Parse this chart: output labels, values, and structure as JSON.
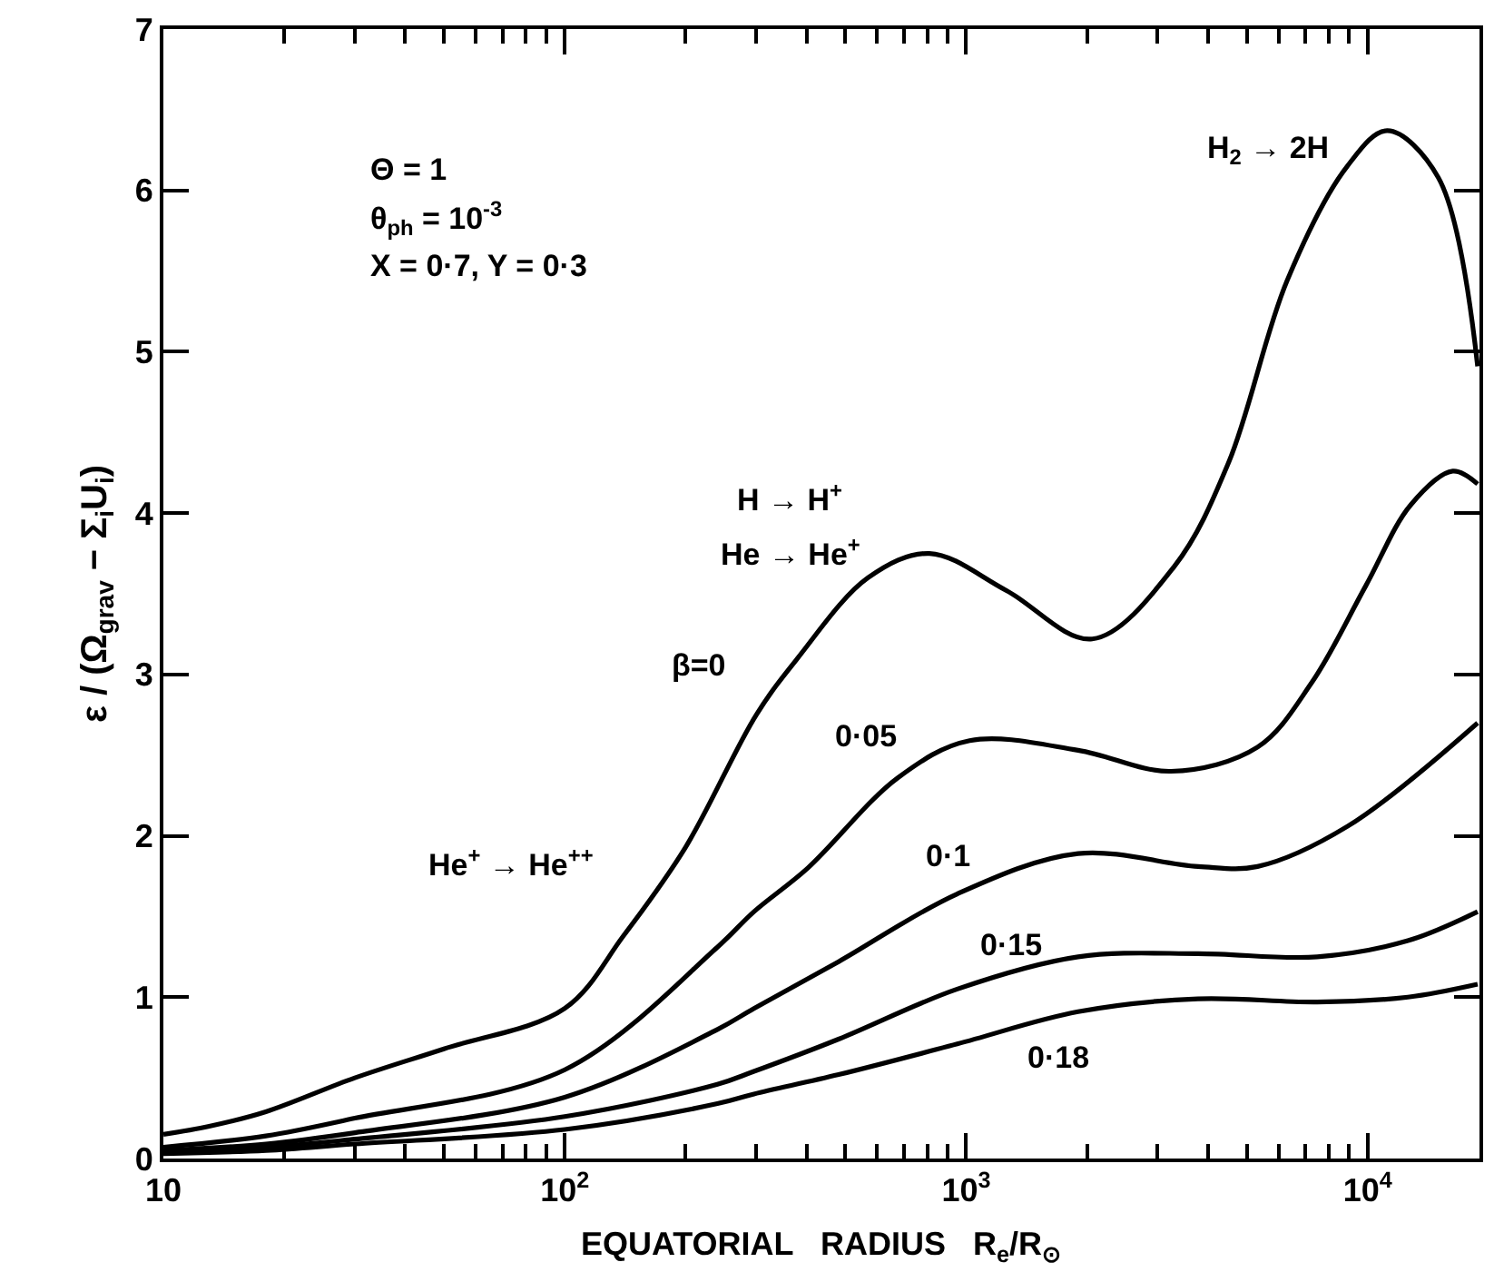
{
  "chart_data": {
    "type": "line",
    "xlabel": "EQUATORIAL   RADIUS   R$_{e}$/R$_{⊙}$",
    "ylabel": "ε / (Ω$_{grav}$ − Σ$_{i}$U$_{i}$)",
    "log": "x",
    "grid": false,
    "legend": false,
    "marker": "none",
    "line_style": "solid",
    "xlim": [
      10,
      19000
    ],
    "ylim": [
      0,
      7
    ],
    "xticks": [
      {
        "value": 10,
        "label": "10"
      },
      {
        "value": 20,
        "label": null
      },
      {
        "value": 30,
        "label": null
      },
      {
        "value": 40,
        "label": null
      },
      {
        "value": 50,
        "label": null
      },
      {
        "value": 60,
        "label": null
      },
      {
        "value": 70,
        "label": null
      },
      {
        "value": 80,
        "label": null
      },
      {
        "value": 90,
        "label": null
      },
      {
        "value": 100,
        "label": "10$^{2}$"
      },
      {
        "value": 200,
        "label": null
      },
      {
        "value": 300,
        "label": null
      },
      {
        "value": 400,
        "label": null
      },
      {
        "value": 500,
        "label": null
      },
      {
        "value": 600,
        "label": null
      },
      {
        "value": 700,
        "label": null
      },
      {
        "value": 800,
        "label": null
      },
      {
        "value": 900,
        "label": null
      },
      {
        "value": 1000,
        "label": "10$^{3}$"
      },
      {
        "value": 2000,
        "label": null
      },
      {
        "value": 3000,
        "label": null
      },
      {
        "value": 4000,
        "label": null
      },
      {
        "value": 5000,
        "label": null
      },
      {
        "value": 6000,
        "label": null
      },
      {
        "value": 7000,
        "label": null
      },
      {
        "value": 8000,
        "label": null
      },
      {
        "value": 9000,
        "label": null
      },
      {
        "value": 10000,
        "label": "10$^{4}$"
      }
    ],
    "yticks": [
      0,
      1,
      2,
      3,
      4,
      5,
      6,
      7
    ],
    "series": [
      {
        "name": "β=0",
        "color": "#000000",
        "x": [
          10,
          13,
          18,
          30,
          50,
          100,
          140,
          200,
          300,
          380,
          570,
          810,
          1260,
          2060,
          3300,
          4500,
          6300,
          8900,
          11200,
          15000,
          18800
        ],
        "values": [
          0.15,
          0.2,
          0.29,
          0.5,
          0.68,
          0.93,
          1.38,
          1.93,
          2.75,
          3.1,
          3.6,
          3.75,
          3.52,
          3.22,
          3.67,
          4.31,
          5.44,
          6.15,
          6.37,
          6.08,
          4.91
        ]
      },
      {
        "name": "0·05",
        "color": "#000000",
        "x": [
          10,
          18,
          30,
          100,
          240,
          296,
          403,
          676,
          1020,
          1900,
          3240,
          5320,
          7260,
          9900,
          12800,
          16300,
          18800
        ],
        "values": [
          0.07,
          0.14,
          0.25,
          0.55,
          1.31,
          1.53,
          1.8,
          2.36,
          2.59,
          2.53,
          2.4,
          2.55,
          2.95,
          3.55,
          4.05,
          4.26,
          4.18
        ]
      },
      {
        "name": "0·1",
        "color": "#000000",
        "x": [
          10,
          18,
          30,
          100,
          240,
          296,
          481,
          950,
          1900,
          3780,
          5320,
          8930,
          18800
        ],
        "values": [
          0.05,
          0.09,
          0.16,
          0.38,
          0.8,
          0.93,
          1.22,
          1.64,
          1.89,
          1.81,
          1.81,
          2.06,
          2.7
        ]
      },
      {
        "name": "0·15",
        "color": "#000000",
        "x": [
          10,
          18,
          30,
          100,
          240,
          296,
          481,
          950,
          1900,
          3780,
          7490,
          12600,
          18800
        ],
        "values": [
          0.04,
          0.07,
          0.12,
          0.26,
          0.46,
          0.54,
          0.74,
          1.05,
          1.25,
          1.27,
          1.25,
          1.35,
          1.53
        ]
      },
      {
        "name": "0·18",
        "color": "#000000",
        "x": [
          10,
          18,
          30,
          100,
          240,
          296,
          481,
          950,
          1900,
          3780,
          7490,
          12600,
          18800
        ],
        "values": [
          0.03,
          0.05,
          0.09,
          0.18,
          0.34,
          0.4,
          0.52,
          0.71,
          0.91,
          0.99,
          0.97,
          1.0,
          1.08
        ]
      }
    ],
    "annotations": [
      "Θ = 1",
      "θ$_{ph}$ = 10$^{-3}$",
      "X = 0·7, Y = 0·3",
      "H → H$^{+}$",
      "He → He$^{+}$",
      "He$^{+}$ → He$^{++}$",
      "H$_{2}$ → 2H"
    ]
  }
}
